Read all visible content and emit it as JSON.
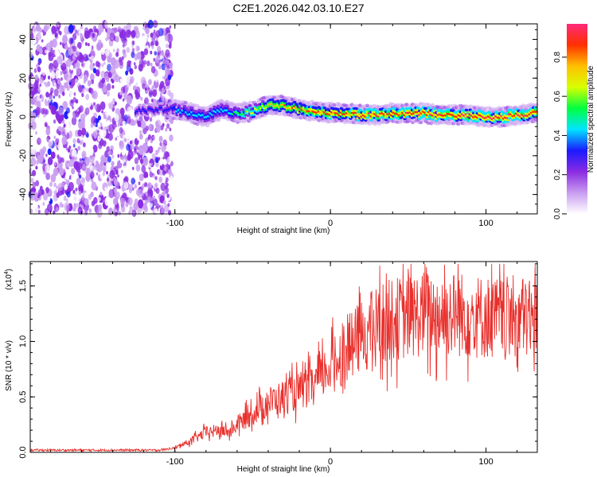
{
  "title": "C2E1.2026.042.03.10.E27",
  "chart_data": [
    {
      "type": "heatmap",
      "name": "spectrogram",
      "xlabel": "Height of straight line (km)",
      "ylabel": "Frequency (Hz)",
      "xlim": [
        -193,
        133
      ],
      "ylim": [
        -50,
        48
      ],
      "x_ticks": [
        -100,
        0,
        100
      ],
      "y_ticks": [
        40,
        20,
        0,
        -20,
        -40
      ],
      "colorbar": {
        "label": "Normalized spectral amplitude",
        "range": [
          0,
          0.97
        ],
        "ticks": [
          0.0,
          0.2,
          0.4,
          0.6,
          0.8
        ],
        "colors": [
          "#ffffff",
          "#c89cf0",
          "#8a2be2",
          "#1a1aff",
          "#00e5ff",
          "#00ff40",
          "#d8ff00",
          "#ffc000",
          "#ff3000",
          "#ff2a7a"
        ]
      },
      "noise_region_x": [
        -193,
        -102
      ],
      "ridge": {
        "x": [
          -125,
          -110,
          -100,
          -90,
          -80,
          -70,
          -60,
          -50,
          -40,
          -30,
          -20,
          -10,
          0,
          10,
          20,
          30,
          40,
          50,
          60,
          70,
          80,
          90,
          100,
          110,
          120,
          133
        ],
        "frequency": [
          3,
          4,
          4,
          2,
          0,
          4,
          2,
          3,
          6,
          6,
          4,
          3,
          2,
          2,
          1,
          1,
          2,
          2,
          2,
          1,
          1,
          1,
          0,
          0,
          1,
          2
        ],
        "amplitude": [
          0.3,
          0.35,
          0.4,
          0.45,
          0.5,
          0.45,
          0.55,
          0.65,
          0.75,
          0.85,
          0.85,
          0.9,
          0.9,
          0.92,
          0.92,
          0.93,
          0.93,
          0.94,
          0.94,
          0.95,
          0.95,
          0.95,
          0.96,
          0.96,
          0.96,
          0.96
        ]
      }
    },
    {
      "type": "line",
      "name": "snr",
      "xlabel": "Height of straight line (km)",
      "ylabel": "SNR (10 * v/v)",
      "multiplier_label": "(x10",
      "multiplier_exponent": "4",
      "multiplier_close": ")",
      "xlim": [
        -193,
        133
      ],
      "ylim": [
        0,
        1.72
      ],
      "x_ticks": [
        -100,
        0,
        100
      ],
      "y_ticks": [
        0.0,
        0.5,
        1.0,
        1.5
      ],
      "y_tick_labels": [
        "0.0",
        "0.5",
        "1.0",
        "1.5"
      ],
      "line_color": "#e8302c",
      "envelope": {
        "x": [
          -193,
          -110,
          -100,
          -90,
          -80,
          -70,
          -65,
          -60,
          -50,
          -40,
          -30,
          -20,
          -10,
          0,
          10,
          20,
          30,
          40,
          50,
          60,
          70,
          80,
          90,
          100,
          110,
          120,
          133
        ],
        "y": [
          0.02,
          0.02,
          0.04,
          0.1,
          0.18,
          0.2,
          0.18,
          0.25,
          0.35,
          0.45,
          0.5,
          0.55,
          0.62,
          0.78,
          0.92,
          1.05,
          1.15,
          1.2,
          1.22,
          1.25,
          1.24,
          1.25,
          1.23,
          1.22,
          1.2,
          1.22,
          1.2
        ]
      }
    }
  ]
}
